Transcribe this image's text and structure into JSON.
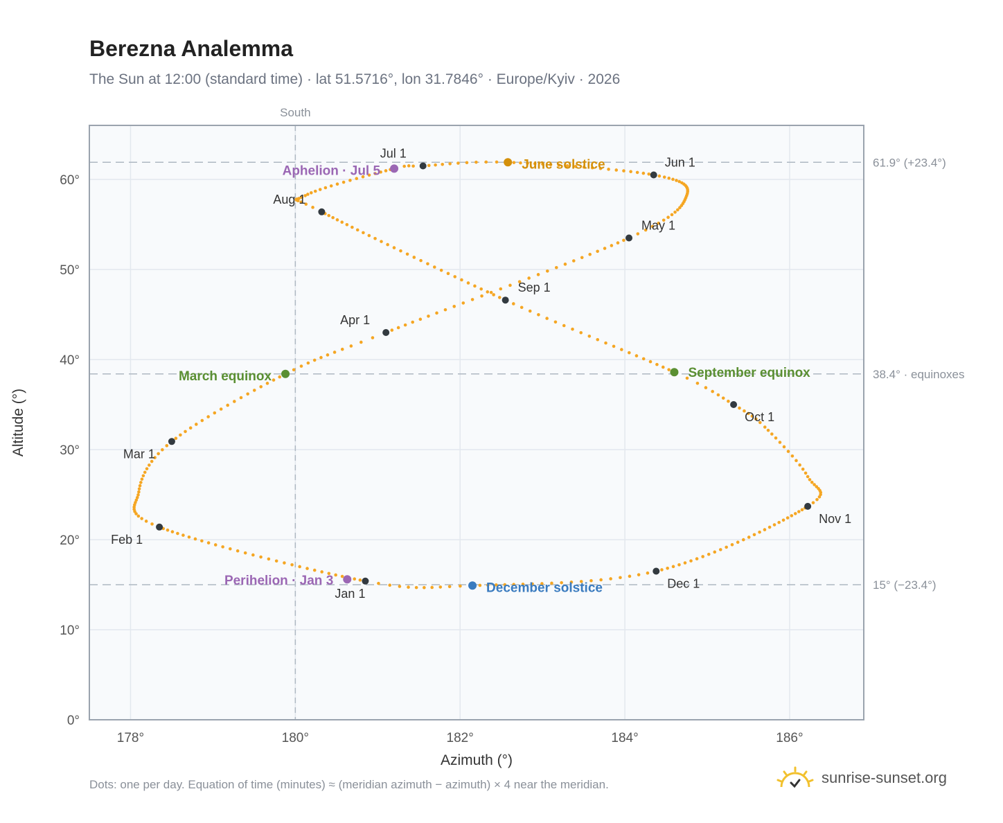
{
  "title": "Berezna Analemma",
  "subtitle": "The Sun at 12:00 (standard time) · lat 51.5716°, lon 31.7846° · Europe/Kyiv · 2026",
  "footnote": "Dots: one per day. Equation of time (minutes) ≈ (meridian azimuth − azimuth) × 4 near the meridian.",
  "brand": {
    "name": "sunrise-sunset.org",
    "icon": "sun-logo-icon",
    "color": "#f2c12e"
  },
  "colors": {
    "curve": "#f5a623",
    "month": "#333a40",
    "solstice_june": "#d4900b",
    "solstice_december": "#3a7bbf",
    "equinox": "#5a8f32",
    "apsis": "#9b67b4",
    "grid": "#e3e8ee",
    "guide": "#aeb8c2",
    "plot_bg": "#f8fafc",
    "frame": "#9aa3ae"
  },
  "chart_data": {
    "type": "scatter",
    "xlabel": "Azimuth (°)",
    "ylabel": "Altitude (°)",
    "xlim": [
      177.5,
      186.9
    ],
    "ylim": [
      0,
      66
    ],
    "x_ticks": [
      178,
      180,
      182,
      184,
      186
    ],
    "x_tick_labels": [
      "178°",
      "180°",
      "182°",
      "184°",
      "186°"
    ],
    "y_ticks": [
      0,
      10,
      20,
      30,
      40,
      50,
      60
    ],
    "y_tick_labels": [
      "0°",
      "10°",
      "20°",
      "30°",
      "40°",
      "50°",
      "60°"
    ],
    "grid": true,
    "south_line": {
      "x": 180,
      "label": "South"
    },
    "reference_lines": [
      {
        "y": 61.9,
        "label": "61.9° (+23.4°)"
      },
      {
        "y": 38.4,
        "label": "38.4° · equinoxes"
      },
      {
        "y": 15.0,
        "label": "15° (−23.4°)"
      }
    ],
    "daily_points": "one per day (365) along the analemma, interpolated through the marked points",
    "month_markers": [
      {
        "label": "Jan 1",
        "x": 180.85,
        "y": 15.4
      },
      {
        "label": "Feb 1",
        "x": 178.35,
        "y": 21.4
      },
      {
        "label": "Mar 1",
        "x": 178.5,
        "y": 30.9
      },
      {
        "label": "Apr 1",
        "x": 181.1,
        "y": 43.0
      },
      {
        "label": "May 1",
        "x": 184.05,
        "y": 53.5
      },
      {
        "label": "Jun 1",
        "x": 184.35,
        "y": 60.5
      },
      {
        "label": "Jul 1",
        "x": 181.55,
        "y": 61.5
      },
      {
        "label": "Aug 1",
        "x": 180.32,
        "y": 56.4
      },
      {
        "label": "Sep 1",
        "x": 182.55,
        "y": 46.6
      },
      {
        "label": "Oct 1",
        "x": 185.32,
        "y": 35.0
      },
      {
        "label": "Nov 1",
        "x": 186.22,
        "y": 23.7
      },
      {
        "label": "Dec 1",
        "x": 184.38,
        "y": 16.5
      }
    ],
    "events": [
      {
        "label": "June solstice",
        "x": 182.58,
        "y": 61.9,
        "kind": "solstice_june"
      },
      {
        "label": "December solstice",
        "x": 182.15,
        "y": 14.9,
        "kind": "solstice_december"
      },
      {
        "label": "March equinox",
        "x": 179.88,
        "y": 38.4,
        "kind": "equinox"
      },
      {
        "label": "September equinox",
        "x": 184.6,
        "y": 38.6,
        "kind": "equinox"
      },
      {
        "label": "Aphelion · Jul 5",
        "x": 181.2,
        "y": 61.2,
        "kind": "apsis"
      },
      {
        "label": "Perihelion · Jan 3",
        "x": 180.63,
        "y": 15.6,
        "kind": "apsis"
      }
    ]
  }
}
